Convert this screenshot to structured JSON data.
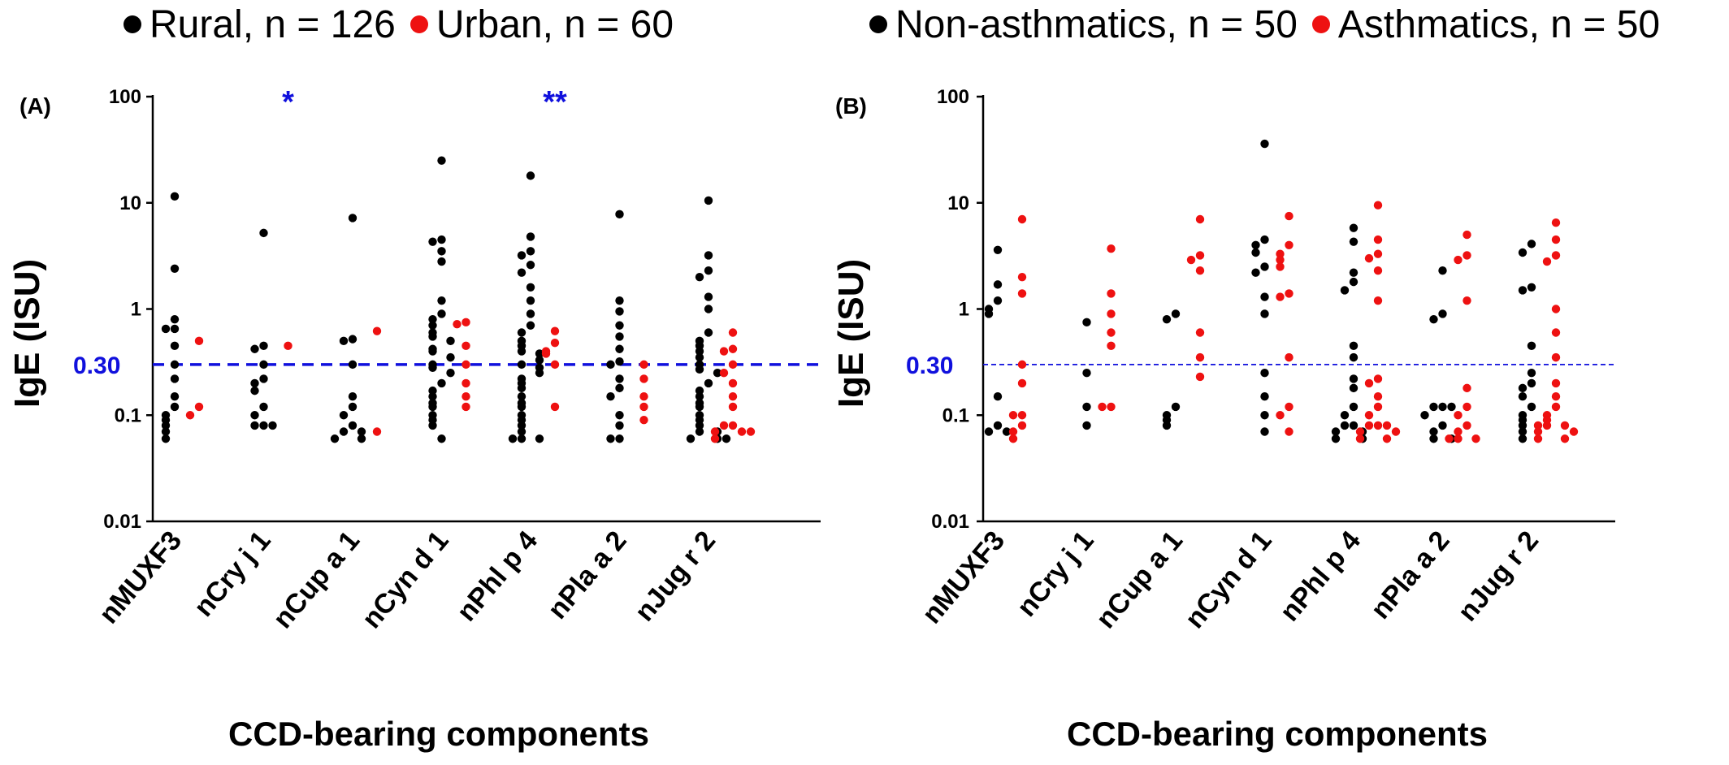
{
  "colors": {
    "series1": "#000000",
    "series2": "#ee1111",
    "threshold": "#1010dd",
    "axis": "#000000"
  },
  "chart_data": [
    {
      "type": "scatter",
      "panel_label": "(A)",
      "ylabel": "IgE (ISU)",
      "xlabel": "CCD-bearing components",
      "yscale": "log",
      "ylim": [
        0.01,
        100
      ],
      "yticks": [
        "100",
        "10",
        "1",
        "0.1",
        "0.01"
      ],
      "threshold": {
        "value": 0.3,
        "label": "0.30",
        "style": "thick-dash"
      },
      "categories": [
        "nMUXF3",
        "nCry j 1",
        "nCup a 1",
        "nCyn d 1",
        "nPhl p 4",
        "nPla a 2",
        "nJug r 2"
      ],
      "significance": [
        {
          "category": "nCry j 1",
          "text": "*"
        },
        {
          "category": "nPhl p 4",
          "text": "**"
        }
      ],
      "legend": [
        {
          "label": "Rural, n = 126",
          "color": "#000000"
        },
        {
          "label": "Urban, n = 60",
          "color": "#ee1111"
        }
      ],
      "series": [
        {
          "name": "Rural, n = 126",
          "color": "#000000",
          "values": [
            [
              11.5,
              2.4,
              0.8,
              0.65,
              0.65,
              0.45,
              0.3,
              0.22,
              0.15,
              0.12,
              0.1,
              0.09,
              0.08,
              0.07,
              0.06
            ],
            [
              5.2,
              0.45,
              0.42,
              0.3,
              0.22,
              0.2,
              0.17,
              0.12,
              0.1,
              0.08,
              0.08,
              0.08
            ],
            [
              7.2,
              0.52,
              0.5,
              0.3,
              0.15,
              0.12,
              0.1,
              0.08,
              0.07,
              0.07,
              0.06,
              0.06
            ],
            [
              25,
              4.5,
              4.3,
              3.5,
              2.8,
              1.2,
              0.9,
              0.8,
              0.7,
              0.6,
              0.55,
              0.5,
              0.42,
              0.4,
              0.35,
              0.3,
              0.28,
              0.25,
              0.2,
              0.17,
              0.15,
              0.13,
              0.12,
              0.1,
              0.09,
              0.08,
              0.06
            ],
            [
              18,
              4.8,
              3.5,
              3.2,
              2.6,
              2.2,
              1.6,
              1.2,
              0.9,
              0.7,
              0.6,
              0.5,
              0.45,
              0.4,
              0.38,
              0.33,
              0.3,
              0.28,
              0.25,
              0.22,
              0.2,
              0.18,
              0.15,
              0.13,
              0.12,
              0.1,
              0.09,
              0.08,
              0.07,
              0.06,
              0.06,
              0.06
            ],
            [
              7.8,
              1.2,
              0.95,
              0.7,
              0.55,
              0.42,
              0.32,
              0.3,
              0.22,
              0.18,
              0.15,
              0.1,
              0.08,
              0.06,
              0.06
            ],
            [
              10.5,
              3.2,
              2.3,
              2.0,
              1.3,
              1.0,
              0.6,
              0.5,
              0.45,
              0.4,
              0.35,
              0.3,
              0.27,
              0.25,
              0.2,
              0.17,
              0.15,
              0.13,
              0.12,
              0.1,
              0.09,
              0.08,
              0.07,
              0.07,
              0.06,
              0.06,
              0.06
            ]
          ]
        },
        {
          "name": "Urban, n = 60",
          "color": "#ee1111",
          "values": [
            [
              0.5,
              0.12,
              0.1
            ],
            [
              0.45
            ],
            [
              0.62,
              0.07
            ],
            [
              0.75,
              0.72,
              0.45,
              0.3,
              0.2,
              0.15,
              0.12
            ],
            [
              0.62,
              0.48,
              0.4,
              0.38,
              0.3,
              0.12
            ],
            [
              0.3,
              0.22,
              0.15,
              0.12,
              0.09
            ],
            [
              0.6,
              0.42,
              0.4,
              0.3,
              0.25,
              0.2,
              0.15,
              0.12,
              0.08,
              0.08,
              0.07,
              0.07,
              0.07,
              0.06
            ]
          ]
        }
      ]
    },
    {
      "type": "scatter",
      "panel_label": "(B)",
      "ylabel": "IgE (ISU)",
      "xlabel": "CCD-bearing components",
      "yscale": "log",
      "ylim": [
        0.01,
        100
      ],
      "yticks": [
        "100",
        "10",
        "1",
        "0.1",
        "0.01"
      ],
      "threshold": {
        "value": 0.3,
        "label": "0.30",
        "style": "thin-dash"
      },
      "categories": [
        "nMUXF3",
        "nCry j 1",
        "nCup a 1",
        "nCyn d 1",
        "nPhl p 4",
        "nPla a 2",
        "nJug r 2"
      ],
      "legend": [
        {
          "label": "Non-asthmatics, n = 50",
          "color": "#000000"
        },
        {
          "label": "Asthmatics, n = 50",
          "color": "#ee1111"
        }
      ],
      "series": [
        {
          "name": "Non-asthmatics, n = 50",
          "color": "#000000",
          "values": [
            [
              3.6,
              1.7,
              1.2,
              1.0,
              0.9,
              0.15,
              0.08,
              0.07,
              0.07
            ],
            [
              0.75,
              0.25,
              0.12,
              0.08
            ],
            [
              0.9,
              0.8,
              0.12,
              0.1,
              0.09,
              0.08
            ],
            [
              36,
              4.5,
              4.0,
              3.4,
              2.5,
              2.2,
              1.3,
              0.9,
              0.25,
              0.15,
              0.1,
              0.07
            ],
            [
              5.8,
              4.3,
              2.2,
              1.8,
              1.5,
              0.45,
              0.35,
              0.22,
              0.18,
              0.12,
              0.1,
              0.08,
              0.08,
              0.07,
              0.07,
              0.06,
              0.06
            ],
            [
              2.3,
              0.9,
              0.8,
              0.12,
              0.12,
              0.12,
              0.1,
              0.08,
              0.07,
              0.06,
              0.06
            ],
            [
              4.1,
              3.4,
              1.6,
              1.5,
              0.45,
              0.25,
              0.2,
              0.18,
              0.15,
              0.12,
              0.1,
              0.09,
              0.08,
              0.07,
              0.06
            ]
          ]
        },
        {
          "name": "Asthmatics, n = 50",
          "color": "#ee1111",
          "values": [
            [
              7,
              2.0,
              1.4,
              0.3,
              0.2,
              0.1,
              0.1,
              0.08,
              0.07,
              0.06
            ],
            [
              3.7,
              1.4,
              0.9,
              0.6,
              0.45,
              0.12,
              0.12
            ],
            [
              7.0,
              3.2,
              2.9,
              2.3,
              0.6,
              0.35,
              0.23
            ],
            [
              7.5,
              4.0,
              3.3,
              2.9,
              2.5,
              1.4,
              1.3,
              0.35,
              0.12,
              0.1,
              0.07
            ],
            [
              9.5,
              4.5,
              3.3,
              3.0,
              2.3,
              1.2,
              0.22,
              0.2,
              0.15,
              0.12,
              0.1,
              0.08,
              0.08,
              0.08,
              0.07,
              0.07,
              0.06,
              0.06
            ],
            [
              5.0,
              3.2,
              2.9,
              1.2,
              0.18,
              0.12,
              0.1,
              0.08,
              0.07,
              0.06,
              0.06,
              0.06
            ],
            [
              6.5,
              4.5,
              3.2,
              2.8,
              1.0,
              0.6,
              0.35,
              0.2,
              0.15,
              0.12,
              0.1,
              0.09,
              0.08,
              0.08,
              0.08,
              0.07,
              0.07,
              0.06,
              0.06
            ]
          ]
        }
      ]
    }
  ]
}
